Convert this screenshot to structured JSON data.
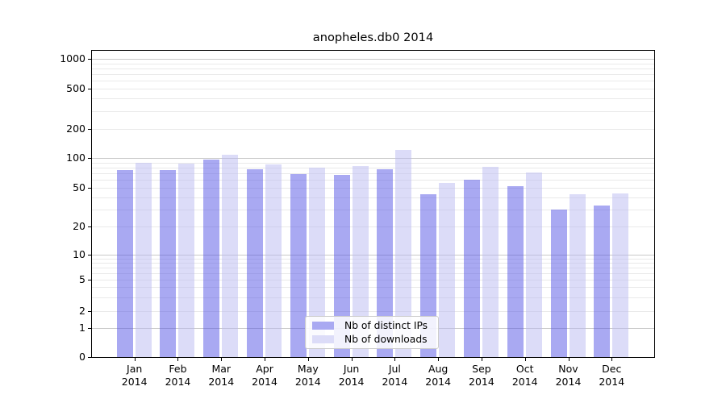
{
  "chart_data": {
    "type": "bar",
    "title": "anopheles.db0 2014",
    "categories": [
      "Jan",
      "Feb",
      "Mar",
      "Apr",
      "May",
      "Jun",
      "Jul",
      "Aug",
      "Sep",
      "Oct",
      "Nov",
      "Dec"
    ],
    "x_year": "2014",
    "series": [
      {
        "name": "Nb of distinct IPs",
        "color": "#a9a9f2",
        "values": [
          75,
          75,
          97,
          77,
          69,
          67,
          77,
          43,
          60,
          52,
          30,
          33
        ]
      },
      {
        "name": "Nb of downloads",
        "color": "#dcdcf8",
        "values": [
          90,
          87,
          109,
          86,
          80,
          83,
          121,
          56,
          82,
          71,
          43,
          44
        ]
      }
    ],
    "y_ticks": [
      0,
      1,
      2,
      5,
      10,
      20,
      50,
      100,
      200,
      500,
      1000
    ],
    "y_scale": "log-like",
    "ylim": [
      0,
      1200
    ],
    "grid": "on",
    "legend_position": "bottom-center",
    "colors": {
      "grid_minor": "#e9e9e9",
      "grid_major": "#c9c9c9",
      "axis": "#000000",
      "background": "#ffffff"
    }
  }
}
